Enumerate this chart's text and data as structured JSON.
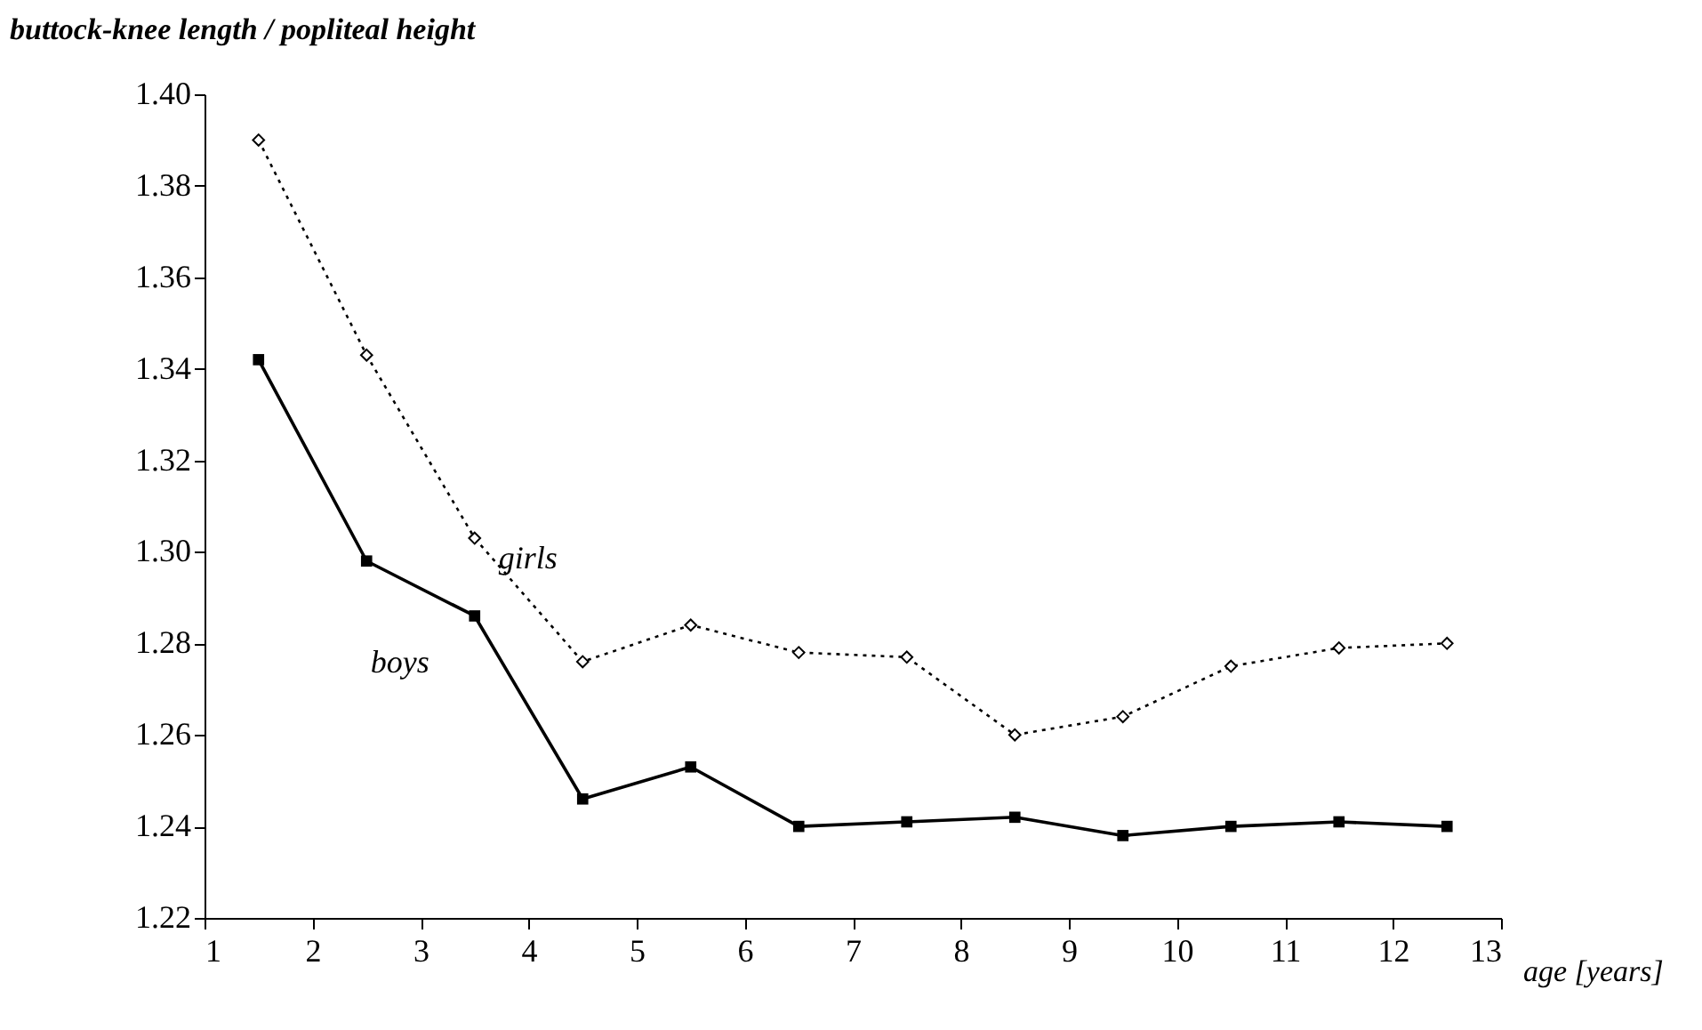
{
  "chart_data": {
    "type": "line",
    "ylabel": "buttock-knee length / popliteal height",
    "xlabel": "age [years]",
    "x": [
      1.5,
      2.5,
      3.5,
      4.5,
      5.5,
      6.5,
      7.5,
      8.5,
      9.5,
      10.5,
      11.5,
      12.5
    ],
    "series": [
      {
        "name": "boys",
        "color": "#000000",
        "marker": "square",
        "line_style": "solid",
        "values": [
          1.342,
          1.298,
          1.286,
          1.246,
          1.253,
          1.24,
          1.241,
          1.242,
          1.238,
          1.24,
          1.241,
          1.24
        ]
      },
      {
        "name": "girls",
        "color": "#000000",
        "marker": "diamond",
        "line_style": "dotted",
        "values": [
          1.39,
          1.343,
          1.303,
          1.276,
          1.284,
          1.278,
          1.277,
          1.26,
          1.264,
          1.275,
          1.279,
          1.28
        ]
      }
    ],
    "xlim": [
      1,
      13
    ],
    "xticks": [
      1,
      2,
      3,
      4,
      5,
      6,
      7,
      8,
      9,
      10,
      11,
      12,
      13
    ],
    "ylim": [
      1.22,
      1.4
    ],
    "yticks": [
      1.22,
      1.24,
      1.26,
      1.28,
      {
        "value": 1.3,
        "label": "1.30"
      },
      1.32,
      1.34,
      1.36,
      1.38,
      {
        "value": 1.4,
        "label": "1.40"
      }
    ],
    "grid": false
  }
}
